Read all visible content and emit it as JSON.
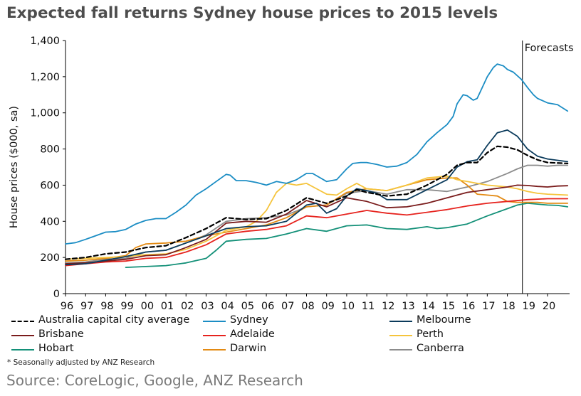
{
  "title": "Expected fall returns Sydney house prices to 2015 levels",
  "footnote": "* Seasonally adjusted by ANZ Research",
  "source": "Source: CoreLogic, Google, ANZ Research",
  "chart_data": {
    "type": "line",
    "title": "Expected fall returns Sydney house prices to 2015 levels",
    "xlabel": "",
    "ylabel": "House prices ($000, sa)",
    "ylim": [
      0,
      1400
    ],
    "xlim": [
      1996,
      2021.1
    ],
    "y_ticks": [
      0,
      200,
      400,
      600,
      800,
      1000,
      1200,
      1400
    ],
    "y_tick_labels": [
      "0",
      "200",
      "400",
      "600",
      "800",
      "1,000",
      "1,200",
      "1,400"
    ],
    "x_ticks": [
      1996,
      1997,
      1998,
      1999,
      2000,
      2001,
      2002,
      2003,
      2004,
      2005,
      2006,
      2007,
      2008,
      2009,
      2010,
      2011,
      2012,
      2013,
      2014,
      2015,
      2016,
      2017,
      2018,
      2019,
      2020
    ],
    "x_tick_labels": [
      "96",
      "97",
      "98",
      "99",
      "00",
      "01",
      "02",
      "03",
      "04",
      "05",
      "06",
      "07",
      "08",
      "09",
      "10",
      "11",
      "12",
      "13",
      "14",
      "15",
      "16",
      "17",
      "18",
      "19",
      "20"
    ],
    "forecast_start": 2018.75,
    "annotation": "Forecasts",
    "legend_position": "bottom",
    "series": [
      {
        "name": "Australia capital city average",
        "color": "#000000",
        "dashed": true,
        "x": [
          1996,
          1997,
          1998,
          1999,
          2000,
          2001,
          2002,
          2003,
          2004,
          2005,
          2006,
          2007,
          2008,
          2009,
          2010,
          2010.5,
          2011,
          2012,
          2013,
          2014,
          2015,
          2015.5,
          2016,
          2016.5,
          2017,
          2017.5,
          2018,
          2018.5,
          2019,
          2019.5,
          2020,
          2021
        ],
        "y": [
          190,
          200,
          220,
          230,
          255,
          265,
          310,
          360,
          420,
          410,
          415,
          460,
          530,
          500,
          540,
          575,
          560,
          540,
          550,
          600,
          660,
          710,
          725,
          725,
          780,
          815,
          810,
          795,
          765,
          740,
          725,
          720
        ]
      },
      {
        "name": "Sydney",
        "color": "#1b8dc4",
        "x": [
          1996,
          1996.5,
          1997,
          1997.5,
          1998,
          1998.5,
          1999,
          1999.5,
          2000,
          2000.5,
          2001,
          2001.5,
          2002,
          2002.5,
          2003,
          2003.5,
          2004,
          2004.2,
          2004.5,
          2005,
          2005.5,
          2006,
          2006.5,
          2007,
          2007.5,
          2008,
          2008.3,
          2009,
          2009.5,
          2010,
          2010.3,
          2010.7,
          2011,
          2011.5,
          2012,
          2012.5,
          2013,
          2013.5,
          2014,
          2014.5,
          2015,
          2015.3,
          2015.5,
          2015.8,
          2016,
          2016.3,
          2016.5,
          2017,
          2017.3,
          2017.5,
          2017.8,
          2018,
          2018.3,
          2018.7,
          2019,
          2019.3,
          2019.5,
          2020,
          2020.5,
          2021
        ],
        "y": [
          275,
          282,
          300,
          320,
          340,
          343,
          355,
          385,
          405,
          415,
          415,
          450,
          490,
          545,
          580,
          620,
          660,
          655,
          625,
          625,
          615,
          600,
          620,
          610,
          630,
          665,
          665,
          620,
          630,
          690,
          720,
          725,
          725,
          715,
          700,
          705,
          725,
          770,
          840,
          890,
          935,
          980,
          1050,
          1100,
          1095,
          1070,
          1080,
          1200,
          1250,
          1270,
          1260,
          1240,
          1225,
          1185,
          1140,
          1100,
          1080,
          1055,
          1045,
          1010
        ]
      },
      {
        "name": "Melbourne",
        "color": "#0b3b5c",
        "x": [
          1996,
          1997,
          1998,
          1999,
          2000,
          2001,
          2002,
          2003,
          2004,
          2005,
          2006,
          2007,
          2008,
          2008.5,
          2009,
          2009.5,
          2010,
          2010.5,
          2011,
          2011.5,
          2012,
          2013,
          2014,
          2015,
          2015.5,
          2016,
          2016.5,
          2017,
          2017.5,
          2018,
          2018.5,
          2019,
          2019.5,
          2020,
          2021
        ],
        "y": [
          160,
          165,
          185,
          205,
          230,
          240,
          280,
          320,
          360,
          370,
          375,
          400,
          490,
          500,
          445,
          470,
          540,
          580,
          570,
          555,
          520,
          520,
          575,
          630,
          700,
          730,
          740,
          820,
          890,
          905,
          870,
          800,
          760,
          745,
          730
        ]
      },
      {
        "name": "Brisbane",
        "color": "#7a1c1c",
        "x": [
          1996,
          1997,
          1998,
          1999,
          2000,
          2001,
          2002,
          2003,
          2004,
          2005,
          2006,
          2007,
          2008,
          2009,
          2010,
          2011,
          2012,
          2013,
          2014,
          2015,
          2016,
          2017,
          2018,
          2018.5,
          2019,
          2019.5,
          2020,
          2020.5,
          2021
        ],
        "y": [
          165,
          170,
          180,
          190,
          210,
          215,
          255,
          300,
          390,
          400,
          395,
          440,
          515,
          480,
          530,
          510,
          475,
          480,
          500,
          530,
          560,
          575,
          590,
          600,
          598,
          593,
          590,
          595,
          597
        ]
      },
      {
        "name": "Adelaide",
        "color": "#e6231e",
        "x": [
          1996,
          1997,
          1998,
          1999,
          2000,
          2001,
          2002,
          2003,
          2004,
          2005,
          2006,
          2007,
          2008,
          2009,
          2010,
          2011,
          2012,
          2013,
          2014,
          2015,
          2016,
          2017,
          2018,
          2019,
          2020,
          2021
        ],
        "y": [
          155,
          165,
          175,
          180,
          195,
          200,
          230,
          270,
          330,
          345,
          355,
          375,
          430,
          420,
          440,
          460,
          445,
          435,
          450,
          465,
          485,
          500,
          510,
          520,
          525,
          525
        ]
      },
      {
        "name": "Perth",
        "color": "#f5c43c",
        "x": [
          1996,
          1997,
          1998,
          1999,
          2000,
          2001,
          2002,
          2003,
          2004,
          2005,
          2005.5,
          2006,
          2006.5,
          2007,
          2007.5,
          2008,
          2008.5,
          2009,
          2009.5,
          2010,
          2010.5,
          2011,
          2012,
          2013,
          2014,
          2015,
          2015.5,
          2016,
          2016.5,
          2017,
          2017.5,
          2018,
          2018.5,
          2019,
          2019.5,
          2020,
          2021
        ],
        "y": [
          190,
          195,
          200,
          205,
          215,
          220,
          245,
          290,
          350,
          370,
          400,
          460,
          560,
          610,
          600,
          610,
          580,
          550,
          545,
          580,
          610,
          580,
          570,
          600,
          640,
          650,
          630,
          620,
          610,
          600,
          595,
          590,
          580,
          565,
          555,
          550,
          545
        ]
      },
      {
        "name": "Darwin",
        "color": "#e38a13",
        "x": [
          1996,
          1997,
          1998,
          1999,
          1999.5,
          2000,
          2001,
          2002,
          2003,
          2004,
          2005,
          2006,
          2007,
          2008,
          2009,
          2010,
          2011,
          2012,
          2013,
          2014,
          2015,
          2015.5,
          2016,
          2016.5,
          2017,
          2017.5,
          2018,
          2018.5,
          2019,
          2019.5,
          2020,
          2021
        ],
        "y": [
          180,
          185,
          195,
          210,
          255,
          275,
          280,
          290,
          320,
          340,
          360,
          380,
          420,
          480,
          490,
          560,
          580,
          570,
          600,
          630,
          640,
          640,
          600,
          550,
          545,
          540,
          510,
          505,
          505,
          505,
          500,
          500
        ]
      },
      {
        "name": "Hobart",
        "color": "#139078",
        "x": [
          1999,
          2000,
          2001,
          2002,
          2003,
          2003.5,
          2004,
          2005,
          2006,
          2007,
          2008,
          2009,
          2010,
          2011,
          2012,
          2013,
          2014,
          2014.5,
          2015,
          2016,
          2017,
          2018,
          2018.5,
          2019,
          2019.5,
          2020,
          2020.5,
          2021
        ],
        "y": [
          145,
          150,
          155,
          170,
          195,
          240,
          290,
          300,
          305,
          330,
          360,
          345,
          375,
          380,
          360,
          355,
          370,
          360,
          365,
          385,
          430,
          470,
          490,
          500,
          495,
          490,
          488,
          480
        ]
      },
      {
        "name": "Canberra",
        "color": "#8c8c8c",
        "x": [
          1996,
          1997,
          1998,
          1999,
          2000,
          2001,
          2002,
          2003,
          2004,
          2005,
          2006,
          2007,
          2008,
          2009,
          2010,
          2011,
          2012,
          2013,
          2014,
          2015,
          2016,
          2017,
          2018,
          2018.5,
          2019,
          2019.5,
          2020,
          2020.5,
          2021
        ],
        "y": [
          170,
          175,
          190,
          195,
          230,
          240,
          280,
          325,
          400,
          415,
          420,
          435,
          480,
          490,
          555,
          570,
          550,
          575,
          575,
          565,
          590,
          620,
          665,
          690,
          710,
          710,
          705,
          710,
          710
        ]
      }
    ]
  },
  "legend": [
    {
      "label": "Australia capital city average",
      "color": "#000000",
      "dashed": true
    },
    {
      "label": "Sydney",
      "color": "#1b8dc4"
    },
    {
      "label": "Melbourne",
      "color": "#0b3b5c"
    },
    {
      "label": "Brisbane",
      "color": "#7a1c1c"
    },
    {
      "label": "Adelaide",
      "color": "#e6231e"
    },
    {
      "label": "Perth",
      "color": "#f5c43c"
    },
    {
      "label": "Hobart",
      "color": "#139078"
    },
    {
      "label": "Darwin",
      "color": "#e38a13"
    },
    {
      "label": "Canberra",
      "color": "#8c8c8c"
    }
  ]
}
